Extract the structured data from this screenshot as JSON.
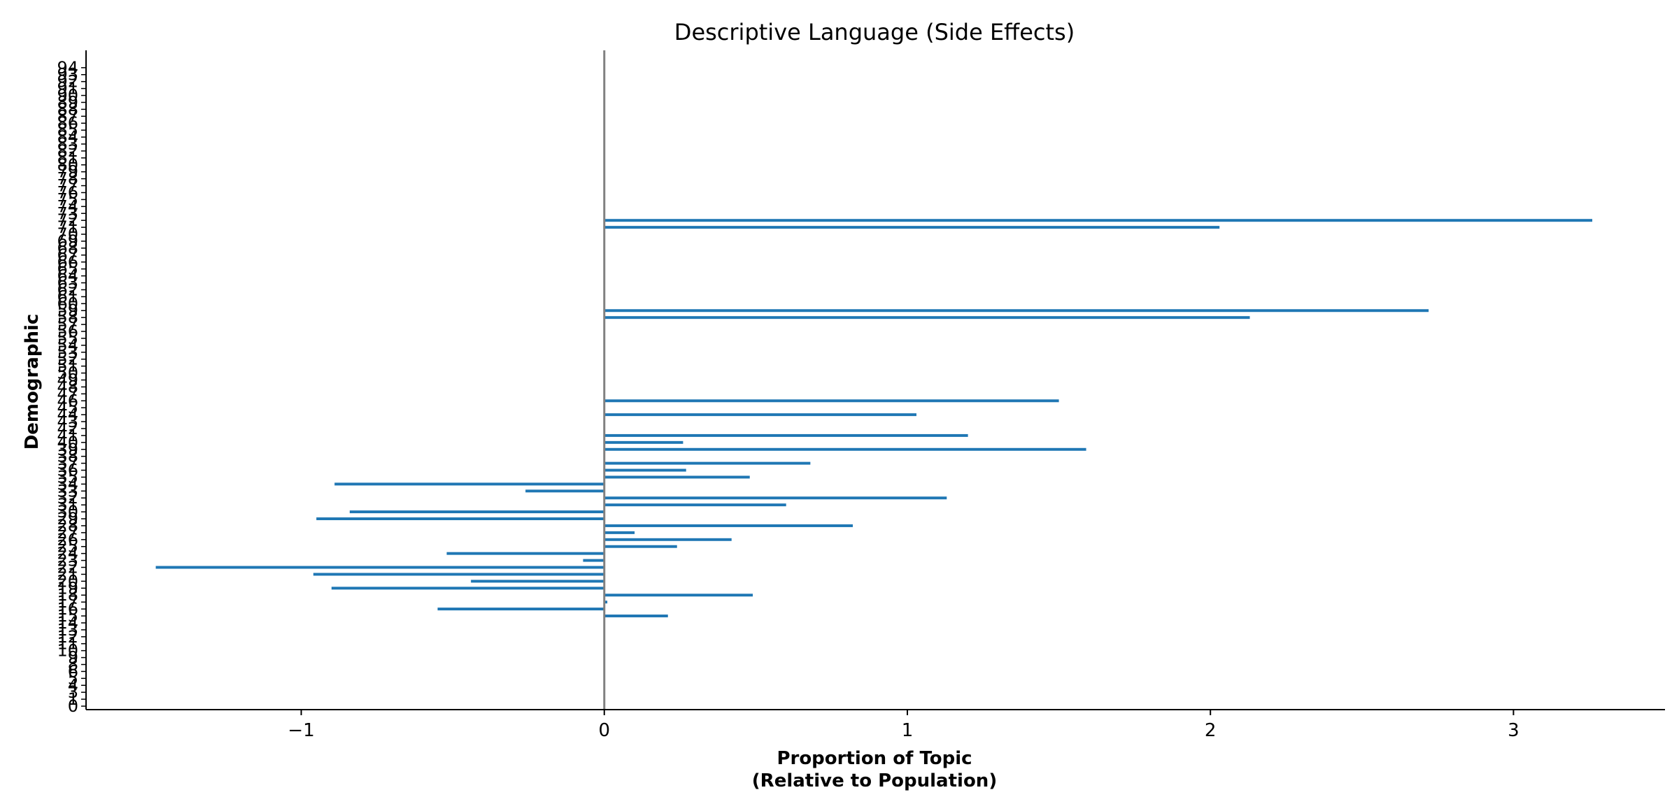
{
  "chart_data": {
    "type": "bar",
    "orientation": "horizontal",
    "title": "Descriptive Language (Side Effects)",
    "xlabel_lines": [
      "Proportion of Topic",
      "(Relative to Population)"
    ],
    "ylabel": "Demographic",
    "xlim": [
      -1.71,
      3.5
    ],
    "ylim": [
      -0.5,
      94.5
    ],
    "xticks": [
      -1,
      0,
      1,
      2,
      3
    ],
    "xtick_labels": [
      "−1",
      "0",
      "1",
      "2",
      "3"
    ],
    "ytick_labels": [
      "0",
      "1",
      "3",
      "4",
      "5",
      "6",
      "8",
      "9",
      "10",
      "11",
      "12",
      "13",
      "14",
      "15",
      "16",
      "17",
      "18",
      "19",
      "20",
      "21",
      "22",
      "23",
      "24",
      "25",
      "26",
      "27",
      "28",
      "29",
      "30",
      "31",
      "32",
      "33",
      "34",
      "35",
      "36",
      "37",
      "38",
      "39",
      "40",
      "41",
      "42",
      "43",
      "44",
      "45",
      "46",
      "47",
      "48",
      "49",
      "50",
      "51",
      "52",
      "53",
      "54",
      "55",
      "56",
      "57",
      "58",
      "59",
      "60",
      "61",
      "62",
      "63",
      "64",
      "65",
      "66",
      "67",
      "68",
      "69",
      "70",
      "71",
      "72",
      "73",
      "74",
      "75",
      "76",
      "77",
      "78",
      "79",
      "80",
      "81",
      "82",
      "83",
      "84",
      "85",
      "86",
      "87",
      "88",
      "89",
      "90",
      "91",
      "92",
      "93",
      "94"
    ],
    "values": [
      0,
      0,
      0,
      0,
      0,
      0,
      0,
      0,
      0,
      0,
      0,
      0,
      0,
      0.21,
      -0.55,
      0.01,
      0.49,
      -0.9,
      -0.44,
      -0.96,
      -1.48,
      -0.07,
      -0.52,
      0.24,
      0.42,
      0.1,
      0.82,
      -0.95,
      -0.84,
      0.6,
      1.13,
      -0.26,
      -0.89,
      0.48,
      0.27,
      0.68,
      0,
      1.59,
      0.26,
      1.2,
      0,
      0,
      1.03,
      0,
      1.5,
      0,
      0,
      0,
      0,
      0,
      0,
      0,
      0,
      0,
      0,
      0,
      2.13,
      2.72,
      0,
      0,
      0,
      0,
      0,
      0,
      0,
      0,
      0,
      0,
      0,
      2.03,
      3.26,
      0,
      0,
      0,
      0,
      0,
      0,
      0,
      0,
      0,
      0,
      0,
      0,
      0,
      0,
      0,
      0,
      0,
      0,
      0,
      0,
      0,
      0
    ],
    "bar_color": "#1f77b4",
    "zero_line_color": "#808080",
    "grid": false,
    "legend": "none"
  }
}
